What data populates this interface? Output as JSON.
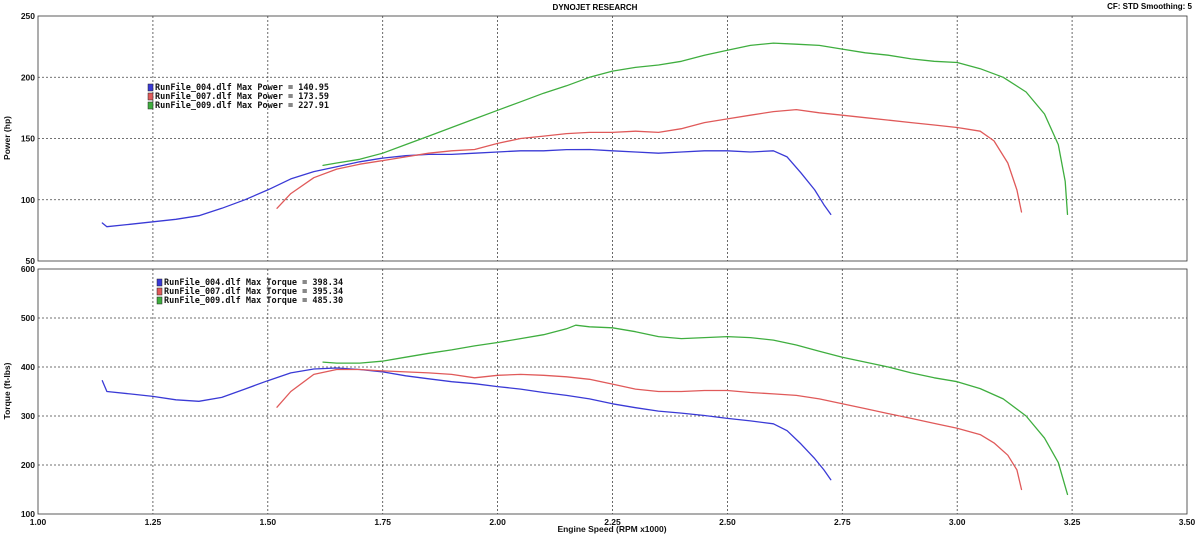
{
  "header": {
    "title": "DYNOJET RESEARCH",
    "settings": "CF: STD  Smoothing: 5"
  },
  "colors": {
    "RunFile_004": "#3a3ad6",
    "RunFile_007": "#e05a5a",
    "RunFile_009": "#3fae3f"
  },
  "chart_data": [
    {
      "type": "line",
      "id": "power",
      "title": "",
      "xlabel": "",
      "ylabel": "Power (hp)",
      "xlim": [
        1.0,
        3.5
      ],
      "ylim": [
        50,
        250
      ],
      "xticks": [
        1.0,
        1.25,
        1.5,
        1.75,
        2.0,
        2.25,
        2.5,
        2.75,
        3.0,
        3.25,
        3.5
      ],
      "yticks": [
        50,
        100,
        150,
        200,
        250
      ],
      "ytick_labels": [
        "50",
        "100",
        "150",
        "200",
        "250"
      ],
      "grid": true,
      "legend_position": "upper-left",
      "series": [
        {
          "name": "RunFile_004.dlf Max Power = 140.95",
          "color_key": "RunFile_004",
          "x": [
            1.14,
            1.15,
            1.2,
            1.25,
            1.3,
            1.35,
            1.4,
            1.45,
            1.5,
            1.55,
            1.6,
            1.65,
            1.7,
            1.75,
            1.8,
            1.85,
            1.9,
            1.95,
            2.0,
            2.05,
            2.1,
            2.15,
            2.2,
            2.25,
            2.3,
            2.35,
            2.4,
            2.45,
            2.5,
            2.55,
            2.6,
            2.63,
            2.66,
            2.69,
            2.71,
            2.725
          ],
          "y": [
            81,
            78,
            80,
            82,
            84,
            87,
            93,
            100,
            108,
            117,
            123,
            127,
            131,
            134,
            136,
            137,
            137,
            138,
            139,
            140,
            140,
            140.9,
            141,
            140,
            139,
            138,
            139,
            140,
            140,
            139,
            140,
            135,
            122,
            108,
            96,
            88
          ]
        },
        {
          "name": "RunFile_007.dlf Max Power = 173.59",
          "color_key": "RunFile_007",
          "x": [
            1.52,
            1.55,
            1.6,
            1.65,
            1.7,
            1.75,
            1.8,
            1.85,
            1.9,
            1.95,
            2.0,
            2.05,
            2.1,
            2.15,
            2.2,
            2.25,
            2.3,
            2.35,
            2.4,
            2.45,
            2.5,
            2.55,
            2.6,
            2.65,
            2.7,
            2.75,
            2.8,
            2.85,
            2.9,
            2.95,
            3.0,
            3.05,
            3.08,
            3.11,
            3.13,
            3.14
          ],
          "y": [
            93,
            105,
            118,
            125,
            129,
            132,
            135,
            138,
            140,
            141,
            146,
            150,
            152,
            154,
            155,
            155,
            156,
            155,
            158,
            163,
            166,
            169,
            172,
            173.6,
            171,
            169,
            167,
            165,
            163,
            161,
            159,
            156,
            148,
            130,
            108,
            90
          ]
        },
        {
          "name": "RunFile_009.dlf Max Power = 227.91",
          "color_key": "RunFile_009",
          "x": [
            1.62,
            1.65,
            1.7,
            1.75,
            1.8,
            1.85,
            1.9,
            1.95,
            2.0,
            2.05,
            2.1,
            2.15,
            2.2,
            2.25,
            2.3,
            2.35,
            2.4,
            2.45,
            2.5,
            2.55,
            2.6,
            2.65,
            2.7,
            2.75,
            2.8,
            2.85,
            2.9,
            2.95,
            3.0,
            3.05,
            3.1,
            3.15,
            3.19,
            3.22,
            3.235,
            3.24
          ],
          "y": [
            128,
            130,
            133,
            138,
            145,
            152,
            159,
            166,
            173,
            180,
            187,
            193,
            200,
            205,
            208,
            210,
            213,
            218,
            222,
            226,
            227.9,
            227,
            226,
            223,
            220,
            218,
            215,
            213,
            212,
            207,
            200,
            188,
            170,
            145,
            115,
            88
          ]
        }
      ]
    },
    {
      "type": "line",
      "id": "torque",
      "title": "",
      "xlabel": "Engine Speed (RPM x1000)",
      "ylabel": "Torque (ft-lbs)",
      "xlim": [
        1.0,
        3.5
      ],
      "ylim": [
        100,
        600
      ],
      "xticks": [
        1.0,
        1.25,
        1.5,
        1.75,
        2.0,
        2.25,
        2.5,
        2.75,
        3.0,
        3.25,
        3.5
      ],
      "xtick_labels": [
        "1.00",
        "1.25",
        "1.50",
        "1.75",
        "2.00",
        "2.25",
        "2.50",
        "2.75",
        "3.00",
        "3.25",
        "3.50"
      ],
      "yticks": [
        100,
        200,
        300,
        400,
        500,
        600
      ],
      "ytick_labels": [
        "100",
        "200",
        "300",
        "400",
        "500",
        "600"
      ],
      "grid": true,
      "legend_position": "upper-left",
      "series": [
        {
          "name": "RunFile_004.dlf Max Torque = 398.34",
          "color_key": "RunFile_004",
          "x": [
            1.14,
            1.15,
            1.2,
            1.25,
            1.3,
            1.35,
            1.4,
            1.45,
            1.5,
            1.55,
            1.6,
            1.65,
            1.7,
            1.75,
            1.8,
            1.85,
            1.9,
            1.95,
            2.0,
            2.05,
            2.1,
            2.15,
            2.2,
            2.25,
            2.3,
            2.35,
            2.4,
            2.45,
            2.5,
            2.55,
            2.6,
            2.63,
            2.66,
            2.69,
            2.71,
            2.725
          ],
          "y": [
            372,
            350,
            345,
            340,
            333,
            330,
            338,
            355,
            372,
            388,
            396,
            398,
            395,
            390,
            382,
            376,
            370,
            366,
            360,
            355,
            348,
            342,
            335,
            325,
            317,
            310,
            306,
            301,
            295,
            290,
            284,
            270,
            243,
            213,
            190,
            170
          ]
        },
        {
          "name": "RunFile_007.dlf Max Torque = 395.34",
          "color_key": "RunFile_007",
          "x": [
            1.52,
            1.55,
            1.6,
            1.65,
            1.7,
            1.75,
            1.8,
            1.85,
            1.9,
            1.95,
            2.0,
            2.05,
            2.1,
            2.15,
            2.2,
            2.25,
            2.3,
            2.35,
            2.4,
            2.45,
            2.5,
            2.55,
            2.6,
            2.65,
            2.7,
            2.75,
            2.8,
            2.85,
            2.9,
            2.95,
            3.0,
            3.05,
            3.08,
            3.11,
            3.13,
            3.14
          ],
          "y": [
            318,
            350,
            385,
            395,
            395,
            392,
            390,
            388,
            385,
            378,
            383,
            385,
            383,
            380,
            375,
            365,
            355,
            350,
            350,
            352,
            352,
            348,
            345,
            342,
            335,
            325,
            315,
            305,
            295,
            285,
            275,
            262,
            245,
            220,
            190,
            150
          ]
        },
        {
          "name": "RunFile_009.dlf Max Torque = 485.30",
          "color_key": "RunFile_009",
          "x": [
            1.62,
            1.65,
            1.7,
            1.75,
            1.8,
            1.85,
            1.9,
            1.95,
            2.0,
            2.05,
            2.1,
            2.15,
            2.17,
            2.2,
            2.25,
            2.3,
            2.35,
            2.4,
            2.45,
            2.5,
            2.55,
            2.6,
            2.65,
            2.7,
            2.75,
            2.8,
            2.85,
            2.9,
            2.95,
            3.0,
            3.05,
            3.1,
            3.15,
            3.19,
            3.22,
            3.24
          ],
          "y": [
            410,
            408,
            408,
            412,
            420,
            428,
            435,
            443,
            450,
            458,
            466,
            478,
            485.3,
            482,
            480,
            472,
            462,
            458,
            460,
            462,
            460,
            455,
            445,
            432,
            420,
            410,
            400,
            388,
            378,
            370,
            356,
            335,
            300,
            255,
            205,
            140
          ]
        }
      ]
    }
  ]
}
